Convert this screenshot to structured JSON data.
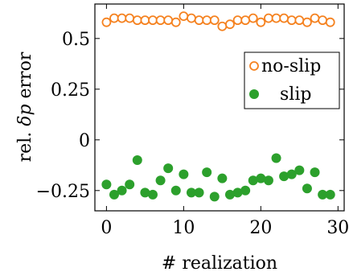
{
  "chart_data": {
    "type": "scatter",
    "xlabel": "# realization",
    "ylabel_prefix": "rel. ",
    "ylabel_symbol": "δp",
    "ylabel_suffix": " error",
    "xlim": [
      -1.5,
      30.8
    ],
    "ylim": [
      -0.35,
      0.67
    ],
    "xticks": [
      0,
      10,
      20,
      30
    ],
    "xtick_labels": [
      "0",
      "10",
      "20",
      "30"
    ],
    "yticks": [
      -0.25,
      0,
      0.25,
      0.5
    ],
    "ytick_labels": [
      "−0.25",
      "0",
      "0.25",
      "0.5"
    ],
    "grid": false,
    "legend_position": "right",
    "series": [
      {
        "name": "no-slip",
        "marker": "open-circle",
        "color": "#f58220",
        "x": [
          0,
          1,
          2,
          3,
          4,
          5,
          6,
          7,
          8,
          9,
          10,
          11,
          12,
          13,
          14,
          15,
          16,
          17,
          18,
          19,
          20,
          21,
          22,
          23,
          24,
          25,
          26,
          27,
          28,
          29
        ],
        "y": [
          0.58,
          0.6,
          0.6,
          0.6,
          0.59,
          0.59,
          0.59,
          0.59,
          0.59,
          0.58,
          0.61,
          0.6,
          0.59,
          0.59,
          0.59,
          0.56,
          0.57,
          0.59,
          0.59,
          0.6,
          0.58,
          0.6,
          0.6,
          0.6,
          0.59,
          0.59,
          0.58,
          0.6,
          0.59,
          0.58
        ]
      },
      {
        "name": "slip",
        "marker": "filled-circle",
        "color": "#2ca02c",
        "x": [
          0,
          1,
          2,
          3,
          4,
          5,
          6,
          7,
          8,
          9,
          10,
          11,
          12,
          13,
          14,
          15,
          16,
          17,
          18,
          19,
          20,
          21,
          22,
          23,
          24,
          25,
          26,
          27,
          28,
          29
        ],
        "y": [
          -0.22,
          -0.27,
          -0.25,
          -0.22,
          -0.1,
          -0.26,
          -0.27,
          -0.2,
          -0.14,
          -0.25,
          -0.17,
          -0.26,
          -0.26,
          -0.16,
          -0.28,
          -0.19,
          -0.27,
          -0.26,
          -0.25,
          -0.2,
          -0.19,
          -0.2,
          -0.09,
          -0.18,
          -0.17,
          -0.15,
          -0.24,
          -0.16,
          -0.27,
          -0.27
        ]
      }
    ]
  }
}
